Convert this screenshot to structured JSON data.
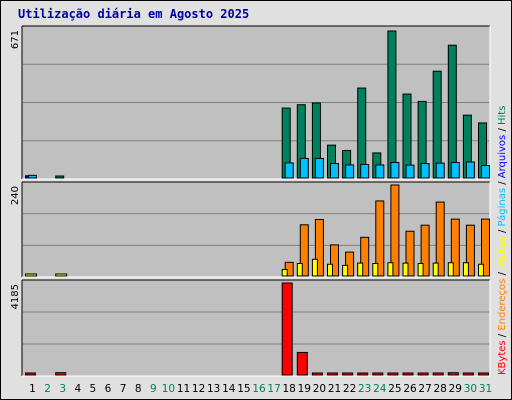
{
  "title": "Utilização diária em Agosto 2025",
  "chart_data": {
    "type": "bar",
    "categories": [
      "1",
      "2",
      "3",
      "4",
      "5",
      "6",
      "7",
      "8",
      "9",
      "10",
      "11",
      "12",
      "13",
      "14",
      "15",
      "16",
      "17",
      "18",
      "19",
      "20",
      "21",
      "22",
      "23",
      "24",
      "25",
      "26",
      "27",
      "28",
      "29",
      "30",
      "31"
    ],
    "weekend_categories": [
      "2",
      "3",
      "9",
      "10",
      "16",
      "17",
      "23",
      "24",
      "30",
      "31"
    ],
    "panels": [
      {
        "ymax": "671",
        "ylim": [
          0,
          671
        ],
        "series": [
          {
            "name": "Hits",
            "color": "#00805c",
            "values": [
              0,
              0,
              4,
              0,
              0,
              0,
              0,
              0,
              0,
              0,
              0,
              0,
              0,
              0,
              0,
              0,
              0,
              315,
              330,
              338,
              148,
              124,
              405,
              113,
              662,
              378,
              345,
              481,
              598,
              283,
              248
            ]
          },
          {
            "name": "Arquivos",
            "color": "#0000ff",
            "values": [
              10,
              0,
              0,
              0,
              0,
              0,
              0,
              0,
              0,
              0,
              0,
              0,
              0,
              0,
              0,
              0,
              0,
              0,
              0,
              0,
              0,
              0,
              0,
              0,
              0,
              0,
              0,
              0,
              0,
              0,
              0
            ]
          },
          {
            "name": "Páginas",
            "color": "#00c0ff",
            "values": [
              12,
              0,
              0,
              0,
              0,
              0,
              0,
              0,
              0,
              0,
              0,
              0,
              0,
              0,
              0,
              0,
              0,
              68,
              88,
              88,
              65,
              59,
              61,
              59,
              70,
              58,
              65,
              67,
              70,
              72,
              56
            ]
          }
        ]
      },
      {
        "ymax": "240",
        "ylim": [
          0,
          240
        ],
        "series": [
          {
            "name": "Visitas",
            "color": "#ffff00",
            "values": [
              3,
              0,
              3,
              0,
              0,
              0,
              0,
              0,
              0,
              0,
              0,
              0,
              0,
              0,
              0,
              0,
              0,
              17,
              33,
              44,
              31,
              28,
              34,
              33,
              35,
              34,
              33,
              34,
              35,
              35,
              31
            ]
          },
          {
            "name": "Endereços",
            "color": "#ff8000",
            "values": [
              0,
              0,
              0,
              0,
              0,
              0,
              0,
              0,
              0,
              0,
              0,
              0,
              0,
              0,
              0,
              0,
              0,
              36,
              135,
              149,
              82,
              63,
              102,
              198,
              240,
              118,
              134,
              195,
              150,
              134,
              150
            ]
          }
        ]
      },
      {
        "ymax": "4185",
        "ylim": [
          0,
          4185
        ],
        "series": [
          {
            "name": "KBytes",
            "color": "#ff0000",
            "values": [
              65,
              0,
              104,
              0,
              0,
              0,
              0,
              0,
              0,
              0,
              0,
              0,
              0,
              0,
              0,
              0,
              0,
              4185,
              1027,
              26,
              26,
              26,
              26,
              26,
              78,
              78,
              78,
              78,
              104,
              52,
              26
            ]
          }
        ]
      }
    ],
    "legend": [
      {
        "text": "Hits",
        "color": "#00805c"
      },
      {
        "text": "Arquivos",
        "color": "#0000ff"
      },
      {
        "text": "Páginas",
        "color": "#00c0ff"
      },
      {
        "text": "Visitas",
        "color": "#ffff00"
      },
      {
        "text": "Endereços",
        "color": "#ff8000"
      },
      {
        "text": "KBytes",
        "color": "#ff0000"
      }
    ],
    "legend_separator": "/",
    "legend_placement": "right",
    "grid": true,
    "colors": {
      "weekday_tick": "#000000",
      "weekend_tick": "#00805c",
      "plot_background": "#c0c0c0",
      "gridline": "#808080",
      "bar_outline": "#000000",
      "frame": "#e0e0e0"
    }
  }
}
